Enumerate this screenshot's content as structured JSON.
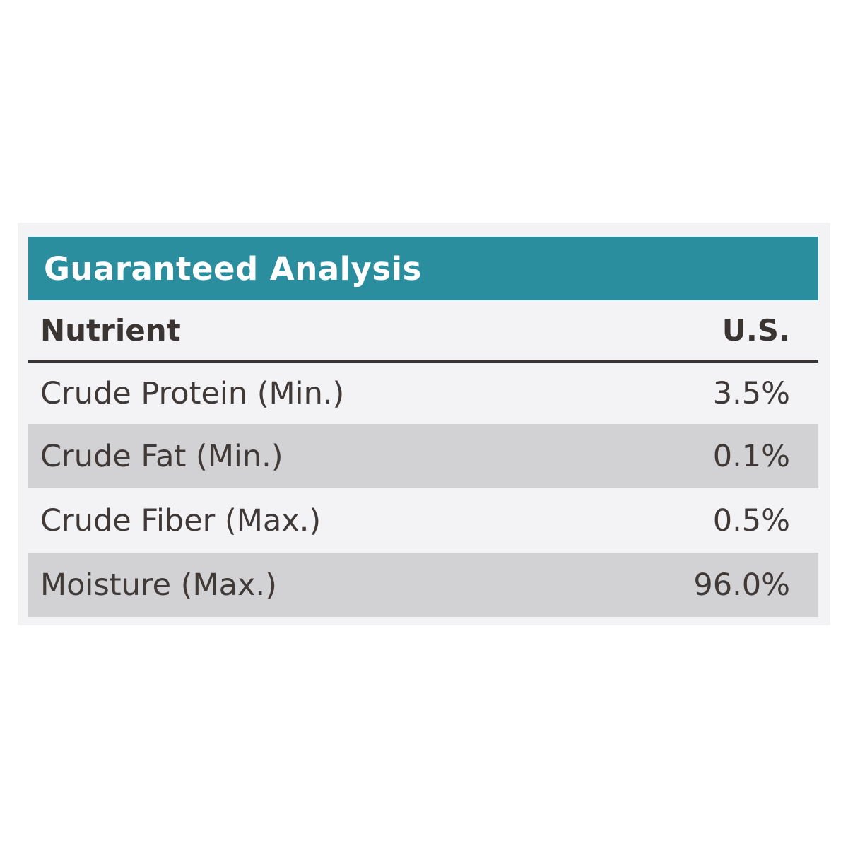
{
  "title": "Guaranteed Analysis",
  "columns": {
    "nutrient": "Nutrient",
    "value": "U.S."
  },
  "rows": [
    {
      "name": "Crude Protein (Min.)",
      "value": "3.5%"
    },
    {
      "name": "Crude Fat (Min.)",
      "value": "0.1%"
    },
    {
      "name": "Crude Fiber (Max.)",
      "value": "0.5%"
    },
    {
      "name": "Moisture (Max.)",
      "value": "96.0%"
    }
  ],
  "colors": {
    "title_background": "#2b8e9f",
    "text": "#3a3433",
    "shaded_row": "#d2d1d3"
  }
}
